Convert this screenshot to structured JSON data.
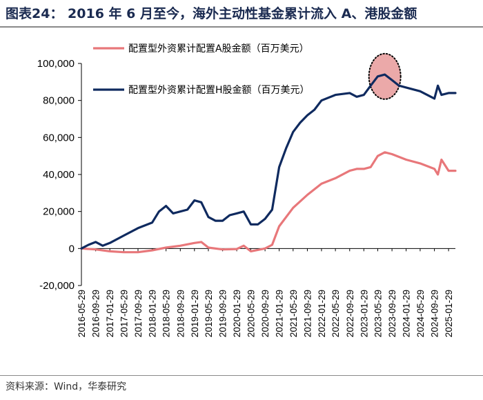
{
  "header": {
    "title": "图表24：  2016 年 6 月至今，海外主动性基金累计流入 A、港股金额"
  },
  "footer": {
    "source": "资料来源：Wind，华泰研究"
  },
  "chart_data": {
    "type": "line",
    "title": "",
    "xlabel": "",
    "ylabel": "",
    "ylim": [
      -20000,
      100000
    ],
    "yticks": [
      -20000,
      0,
      20000,
      40000,
      60000,
      80000,
      100000
    ],
    "ytick_labels": [
      "-20,000",
      "0",
      "20,000",
      "40,000",
      "60,000",
      "80,000",
      "100,000"
    ],
    "xtick_labels": [
      "2016-05-29",
      "2016-09-29",
      "2017-01-29",
      "2017-05-29",
      "2017-09-29",
      "2018-01-29",
      "2018-05-29",
      "2018-09-29",
      "2019-01-29",
      "2019-05-29",
      "2019-09-29",
      "2020-01-29",
      "2020-05-29",
      "2020-09-29",
      "2021-01-29",
      "2021-05-29",
      "2021-09-29",
      "2022-01-29",
      "2022-05-29",
      "2022-09-29",
      "2023-01-29",
      "2023-05-29",
      "2023-09-29",
      "2024-01-29",
      "2024-05-29",
      "2024-09-29",
      "2025-01-29"
    ],
    "legend_position": "top-center",
    "grid": false,
    "series": [
      {
        "name": "配置型外资累计配置A股金额（百万美元）",
        "color": "#e8777a",
        "x": [
          "2016-05-29",
          "2016-09-29",
          "2017-01-29",
          "2017-05-29",
          "2017-09-29",
          "2018-01-29",
          "2018-05-29",
          "2018-09-29",
          "2019-01-29",
          "2019-03-29",
          "2019-05-29",
          "2019-09-29",
          "2020-01-29",
          "2020-03-29",
          "2020-05-29",
          "2020-09-29",
          "2020-11-29",
          "2021-01-29",
          "2021-05-29",
          "2021-09-29",
          "2022-01-29",
          "2022-05-29",
          "2022-09-29",
          "2022-11-29",
          "2023-01-29",
          "2023-03-29",
          "2023-05-29",
          "2023-07-29",
          "2023-09-29",
          "2024-01-29",
          "2024-05-29",
          "2024-09-29",
          "2024-10-29",
          "2024-11-29",
          "2025-01-29",
          "2025-03-29"
        ],
        "values": [
          0,
          -500,
          -1500,
          -2000,
          -2000,
          -1000,
          500,
          1500,
          3000,
          3500,
          500,
          -500,
          -300,
          1500,
          -1500,
          0,
          2000,
          12000,
          22000,
          29000,
          35000,
          38000,
          42000,
          43000,
          43000,
          44000,
          50000,
          52000,
          51000,
          48000,
          46000,
          43000,
          40000,
          48000,
          42000,
          42000
        ]
      },
      {
        "name": "配置型外资累计配置H股金额（百万美元）",
        "color": "#0f2a5f",
        "x": [
          "2016-05-29",
          "2016-07-29",
          "2016-09-29",
          "2016-11-29",
          "2017-01-29",
          "2017-05-29",
          "2017-09-29",
          "2018-01-29",
          "2018-03-29",
          "2018-05-29",
          "2018-07-29",
          "2018-09-29",
          "2018-11-29",
          "2019-01-29",
          "2019-03-29",
          "2019-05-29",
          "2019-07-29",
          "2019-09-29",
          "2019-11-29",
          "2020-01-29",
          "2020-03-29",
          "2020-05-29",
          "2020-07-29",
          "2020-09-29",
          "2020-11-29",
          "2021-01-29",
          "2021-03-29",
          "2021-05-29",
          "2021-07-29",
          "2021-09-29",
          "2021-11-29",
          "2022-01-29",
          "2022-05-29",
          "2022-09-29",
          "2022-11-29",
          "2023-01-29",
          "2023-03-29",
          "2023-05-29",
          "2023-07-29",
          "2023-09-29",
          "2023-11-29",
          "2024-01-29",
          "2024-05-29",
          "2024-08-29",
          "2024-09-29",
          "2024-10-29",
          "2024-11-29",
          "2025-01-29",
          "2025-03-29"
        ],
        "values": [
          0,
          2000,
          3500,
          1500,
          3000,
          7000,
          11000,
          14000,
          20000,
          23000,
          19000,
          20000,
          21000,
          26000,
          25000,
          17000,
          15000,
          15000,
          18000,
          19000,
          20000,
          13000,
          13000,
          16000,
          21000,
          44000,
          54000,
          63000,
          68000,
          72000,
          75000,
          80000,
          83000,
          84000,
          82000,
          83000,
          88000,
          93000,
          94000,
          91000,
          88000,
          87000,
          85000,
          82000,
          81000,
          88000,
          83000,
          84000,
          84000
        ]
      }
    ],
    "annotations": [
      {
        "type": "ellipse-highlight",
        "x": "2023-07-29",
        "y": 93000,
        "fill": "#e79a9a",
        "stroke": "#000000",
        "style": "dotted"
      }
    ]
  }
}
